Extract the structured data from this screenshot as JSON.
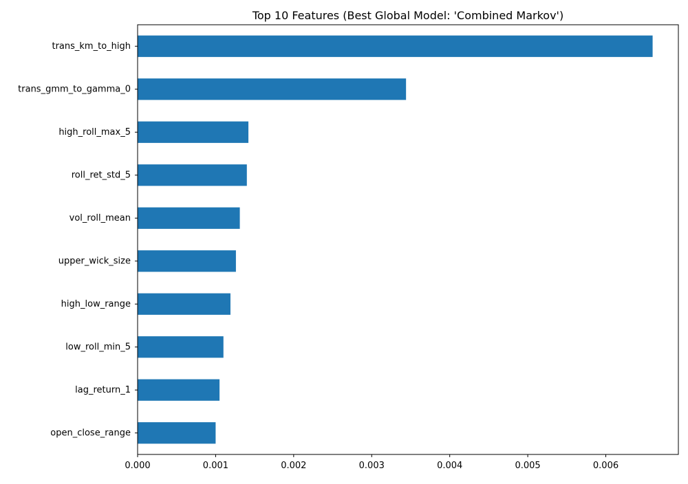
{
  "chart_data": {
    "type": "bar",
    "orientation": "horizontal",
    "title": "Top 10 Features (Best Global Model: 'Combined Markov')",
    "xlabel": "",
    "ylabel": "",
    "categories": [
      "trans_km_to_high",
      "trans_gmm_to_gamma_0",
      "high_roll_max_5",
      "roll_ret_std_5",
      "vol_roll_mean",
      "upper_wick_size",
      "high_low_range",
      "low_roll_min_5",
      "lag_return_1",
      "open_close_range"
    ],
    "values": [
      0.0066,
      0.00344,
      0.00142,
      0.0014,
      0.00131,
      0.00126,
      0.00119,
      0.0011,
      0.00105,
      0.001
    ],
    "xlim": [
      0,
      0.00693
    ],
    "xticks": [
      0.0,
      0.001,
      0.002,
      0.003,
      0.004,
      0.005,
      0.006
    ],
    "xtick_labels": [
      "0.000",
      "0.001",
      "0.002",
      "0.003",
      "0.004",
      "0.005",
      "0.006"
    ],
    "grid": false,
    "legend": "none",
    "bar_color": "#1f77b4"
  }
}
